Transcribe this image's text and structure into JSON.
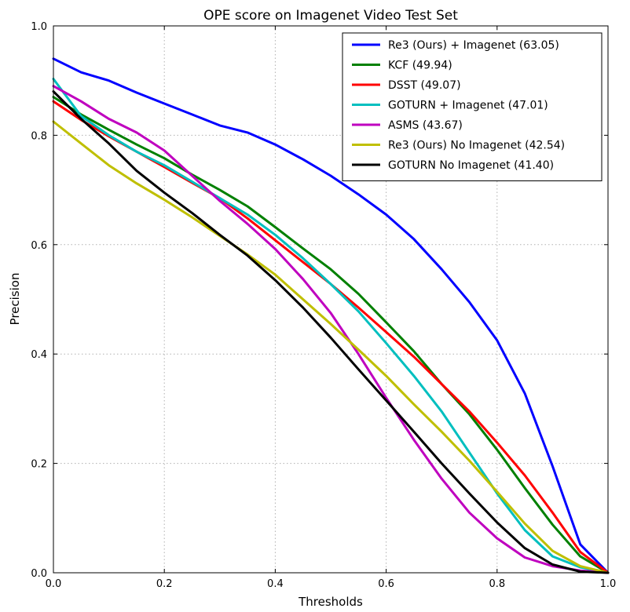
{
  "chart_data": {
    "type": "line",
    "title": "OPE score on Imagenet Video Test Set",
    "xlabel": "Thresholds",
    "ylabel": "Precision",
    "xlim": [
      0.0,
      1.0
    ],
    "ylim": [
      0.0,
      1.0
    ],
    "xticks": [
      "0.0",
      "0.2",
      "0.4",
      "0.6",
      "0.8",
      "1.0"
    ],
    "yticks": [
      "0.0",
      "0.2",
      "0.4",
      "0.6",
      "0.8",
      "1.0"
    ],
    "grid": true,
    "legend_position": "top-right",
    "x": [
      0.0,
      0.05,
      0.1,
      0.15,
      0.2,
      0.25,
      0.3,
      0.35,
      0.4,
      0.45,
      0.5,
      0.55,
      0.6,
      0.65,
      0.7,
      0.75,
      0.8,
      0.85,
      0.9,
      0.95,
      1.0
    ],
    "series": [
      {
        "name": "Re3 (Ours) + Imagenet (63.05)",
        "color": "#0000ff",
        "values": [
          0.94,
          0.915,
          0.9,
          0.878,
          0.858,
          0.838,
          0.818,
          0.805,
          0.783,
          0.756,
          0.726,
          0.692,
          0.655,
          0.61,
          0.555,
          0.495,
          0.425,
          0.328,
          0.195,
          0.052,
          0.0
        ]
      },
      {
        "name": "KCF (49.94)",
        "color": "#008000",
        "values": [
          0.87,
          0.838,
          0.81,
          0.783,
          0.758,
          0.728,
          0.7,
          0.67,
          0.632,
          0.593,
          0.555,
          0.51,
          0.458,
          0.405,
          0.345,
          0.29,
          0.225,
          0.155,
          0.088,
          0.03,
          0.0
        ]
      },
      {
        "name": "DSST (49.07)",
        "color": "#ff0000",
        "values": [
          0.862,
          0.828,
          0.798,
          0.77,
          0.742,
          0.713,
          0.685,
          0.648,
          0.608,
          0.568,
          0.528,
          0.485,
          0.44,
          0.395,
          0.345,
          0.295,
          0.238,
          0.178,
          0.11,
          0.038,
          0.0
        ]
      },
      {
        "name": "GOTURN + Imagenet (47.01)",
        "color": "#00bfbf",
        "values": [
          0.903,
          0.835,
          0.8,
          0.77,
          0.745,
          0.715,
          0.685,
          0.655,
          0.618,
          0.575,
          0.528,
          0.478,
          0.42,
          0.36,
          0.295,
          0.22,
          0.145,
          0.078,
          0.03,
          0.01,
          0.0
        ]
      },
      {
        "name": "ASMS (43.67)",
        "color": "#bf00bf",
        "values": [
          0.89,
          0.862,
          0.83,
          0.805,
          0.772,
          0.726,
          0.68,
          0.638,
          0.592,
          0.537,
          0.475,
          0.4,
          0.32,
          0.243,
          0.172,
          0.11,
          0.063,
          0.028,
          0.012,
          0.004,
          0.0
        ]
      },
      {
        "name": "Re3 (Ours) No Imagenet (42.54)",
        "color": "#bfbf00",
        "values": [
          0.825,
          0.785,
          0.745,
          0.712,
          0.682,
          0.65,
          0.616,
          0.582,
          0.545,
          0.5,
          0.455,
          0.408,
          0.36,
          0.308,
          0.258,
          0.205,
          0.148,
          0.09,
          0.04,
          0.012,
          0.0
        ]
      },
      {
        "name": "GOTURN No Imagenet (41.40)",
        "color": "#000000",
        "values": [
          0.88,
          0.83,
          0.785,
          0.735,
          0.695,
          0.658,
          0.618,
          0.58,
          0.535,
          0.485,
          0.43,
          0.372,
          0.315,
          0.258,
          0.2,
          0.145,
          0.092,
          0.045,
          0.015,
          0.002,
          0.0
        ]
      }
    ]
  }
}
